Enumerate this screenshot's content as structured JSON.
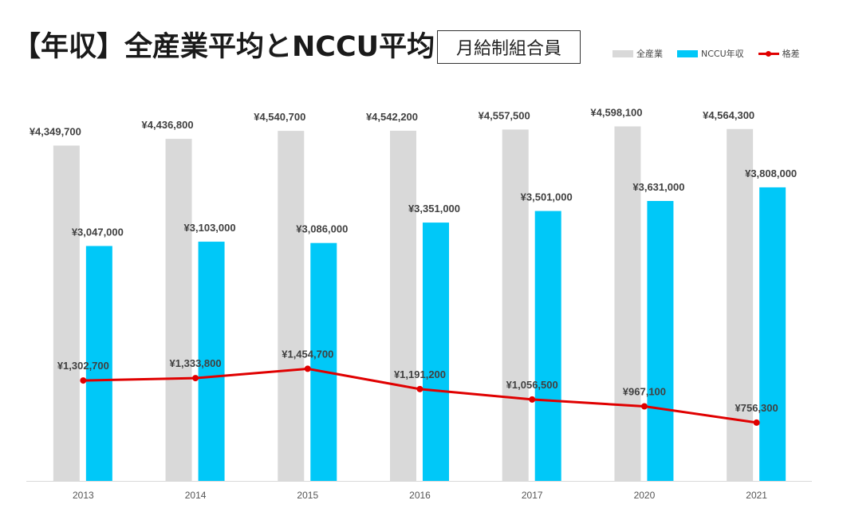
{
  "header": {
    "title": "【年収】全産業平均とNCCU平均",
    "badge": "月給制組合員"
  },
  "legend": {
    "items": [
      {
        "label": "全産業",
        "color": "#d9d9d9",
        "kind": "bar"
      },
      {
        "label": "NCCU年収",
        "color": "#00c8f8",
        "kind": "bar"
      },
      {
        "label": "格差",
        "color": "#e00000",
        "kind": "line"
      }
    ]
  },
  "chart_data": {
    "type": "bar",
    "categories": [
      "2013",
      "2014",
      "2015",
      "2016",
      "2017",
      "2020",
      "2021"
    ],
    "ylim": [
      0,
      4800000
    ],
    "legend_position": "top-right",
    "grid": false,
    "series": [
      {
        "name": "全産業",
        "kind": "bar",
        "color": "#d9d9d9",
        "values": [
          4349700,
          4436800,
          4540700,
          4542200,
          4557500,
          4598100,
          4564300
        ],
        "labels": [
          "¥4,349,700",
          "¥4,436,800",
          "¥4,540,700",
          "¥4,542,200",
          "¥4,557,500",
          "¥4,598,100",
          "¥4,564,300"
        ]
      },
      {
        "name": "NCCU年収",
        "kind": "bar",
        "color": "#00c8f8",
        "values": [
          3047000,
          3103000,
          3086000,
          3351000,
          3501000,
          3631000,
          3808000
        ],
        "labels": [
          "¥3,047,000",
          "¥3,103,000",
          "¥3,086,000",
          "¥3,351,000",
          "¥3,501,000",
          "¥3,631,000",
          "¥3,808,000"
        ]
      },
      {
        "name": "格差",
        "kind": "line",
        "color": "#e00000",
        "values": [
          1302700,
          1333800,
          1454700,
          1191200,
          1056500,
          967100,
          756300
        ],
        "labels": [
          "¥1,302,700",
          "¥1,333,800",
          "¥1,454,700",
          "¥1,191,200",
          "¥1,056,500",
          "¥967,100",
          "¥756,300"
        ]
      }
    ]
  }
}
